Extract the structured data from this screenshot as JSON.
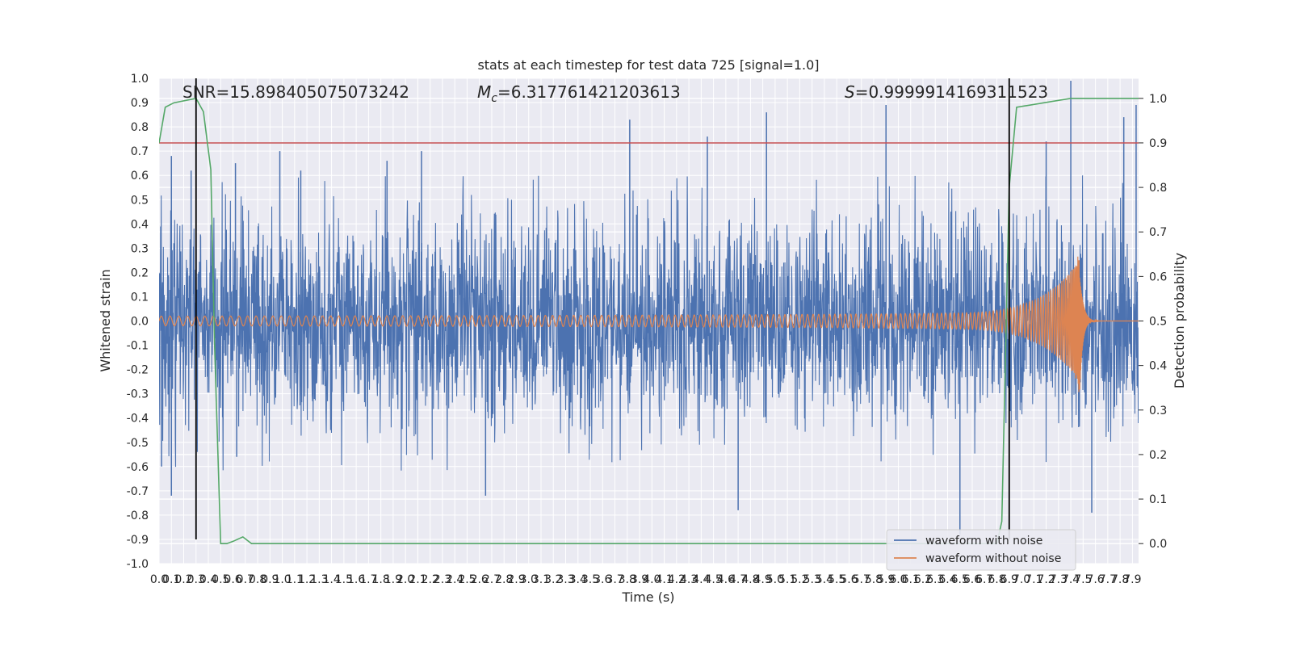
{
  "chart_data": {
    "type": "line",
    "title": "stats at each timestep for test data 725 [signal=1.0]",
    "xlabel": "Time (s)",
    "ylabel": "Whitened strain",
    "y2label": "Detection probability",
    "xlim": [
      0.0,
      7.95
    ],
    "ylim": [
      -1.0,
      1.0
    ],
    "y2lim": [
      -0.045,
      1.045
    ],
    "x_ticks": [
      "0.0",
      "0.1",
      "0.2",
      "0.3",
      "0.4",
      "0.5",
      "0.6",
      "0.7",
      "0.8",
      "0.9",
      "1.0",
      "1.1",
      "1.2",
      "1.3",
      "1.4",
      "1.5",
      "1.6",
      "1.7",
      "1.8",
      "1.9",
      "2.0",
      "2.1",
      "2.2",
      "2.3",
      "2.4",
      "2.5",
      "2.6",
      "2.7",
      "2.8",
      "2.9",
      "3.0",
      "3.1",
      "3.2",
      "3.3",
      "3.4",
      "3.5",
      "3.6",
      "3.7",
      "3.8",
      "3.9",
      "4.0",
      "4.1",
      "4.2",
      "4.3",
      "4.4",
      "4.5",
      "4.6",
      "4.7",
      "4.8",
      "4.9",
      "5.0",
      "5.1",
      "5.2",
      "5.3",
      "5.4",
      "5.5",
      "5.6",
      "5.7",
      "5.8",
      "5.9",
      "6.0",
      "6.1",
      "6.2",
      "6.3",
      "6.4",
      "6.5",
      "6.6",
      "6.7",
      "6.8",
      "6.9",
      "7.0",
      "7.1",
      "7.2",
      "7.3",
      "7.4",
      "7.5",
      "7.6",
      "7.7",
      "7.8",
      "7.9"
    ],
    "y_ticks": [
      "1.0",
      "0.9",
      "0.8",
      "0.7",
      "0.6",
      "0.5",
      "0.4",
      "0.3",
      "0.2",
      "0.1",
      "0.0",
      "-0.1",
      "-0.2",
      "-0.3",
      "-0.4",
      "-0.5",
      "-0.6",
      "-0.7",
      "-0.8",
      "-0.9",
      "-1.0"
    ],
    "y2_ticks": [
      "1.0",
      "0.9",
      "0.8",
      "0.7",
      "0.6",
      "0.5",
      "0.4",
      "0.3",
      "0.2",
      "0.1",
      "0.0"
    ],
    "annotations": {
      "snr": "SNR=15.898405075073242",
      "mc_symbol": "M",
      "mc_sub": "c",
      "mc_value": "=6.317761421203613",
      "s_symbol": "S",
      "s_value": "=0.9999914169311523"
    },
    "series": [
      {
        "name": "waveform with noise",
        "color": "#4c72b0",
        "style": "noise",
        "envelope_typical": 0.38,
        "peak_samples": [
          {
            "x": 0.02,
            "y": -0.6
          },
          {
            "x": 0.1,
            "y": -0.72
          },
          {
            "x": 0.1,
            "y": 0.68
          },
          {
            "x": 0.26,
            "y": 0.62
          },
          {
            "x": 0.62,
            "y": 0.65
          },
          {
            "x": 0.63,
            "y": -0.56
          },
          {
            "x": 0.98,
            "y": 0.7
          },
          {
            "x": 1.15,
            "y": 0.62
          },
          {
            "x": 1.85,
            "y": 0.66
          },
          {
            "x": 2.13,
            "y": 0.7
          },
          {
            "x": 2.65,
            "y": -0.72
          },
          {
            "x": 3.82,
            "y": 0.83
          },
          {
            "x": 4.45,
            "y": 0.76
          },
          {
            "x": 4.7,
            "y": -0.78
          },
          {
            "x": 4.93,
            "y": 0.86
          },
          {
            "x": 5.9,
            "y": 0.89
          },
          {
            "x": 6.5,
            "y": -0.88
          },
          {
            "x": 7.2,
            "y": 0.74
          },
          {
            "x": 7.4,
            "y": 0.99
          },
          {
            "x": 7.57,
            "y": -0.79
          },
          {
            "x": 7.83,
            "y": 0.84
          },
          {
            "x": 7.93,
            "y": 0.89
          }
        ]
      },
      {
        "name": "waveform without noise",
        "color": "#dd8452",
        "style": "chirp",
        "t_merger": 7.47,
        "amp_start": 0.02,
        "amp_peak": 0.32
      },
      {
        "name": "",
        "color": "#55a868",
        "axis": "right",
        "style": "line",
        "x": [
          0.0,
          0.05,
          0.12,
          0.3,
          0.36,
          0.42,
          0.45,
          0.5,
          0.55,
          0.6,
          0.68,
          0.75,
          6.75,
          6.8,
          6.84,
          6.9,
          6.96,
          7.4,
          7.95
        ],
        "y": [
          0.9,
          0.98,
          0.99,
          1.0,
          0.97,
          0.84,
          0.45,
          0.0,
          0.0,
          0.005,
          0.015,
          0.0,
          0.0,
          0.0,
          0.05,
          0.8,
          0.98,
          1.0,
          1.0
        ]
      }
    ],
    "threshold": {
      "axis": "right",
      "value": 0.9,
      "color": "#c44e52"
    },
    "vlines": [
      {
        "x": 0.3,
        "ymin": -0.9,
        "ymax": 1.0,
        "color": "#000000"
      },
      {
        "x": 6.9,
        "ymin": -0.9,
        "ymax": 1.0,
        "color": "#000000"
      }
    ],
    "legend": {
      "placement": "lower-right",
      "entries": [
        "waveform with noise",
        "waveform without noise"
      ]
    },
    "grid": true
  }
}
